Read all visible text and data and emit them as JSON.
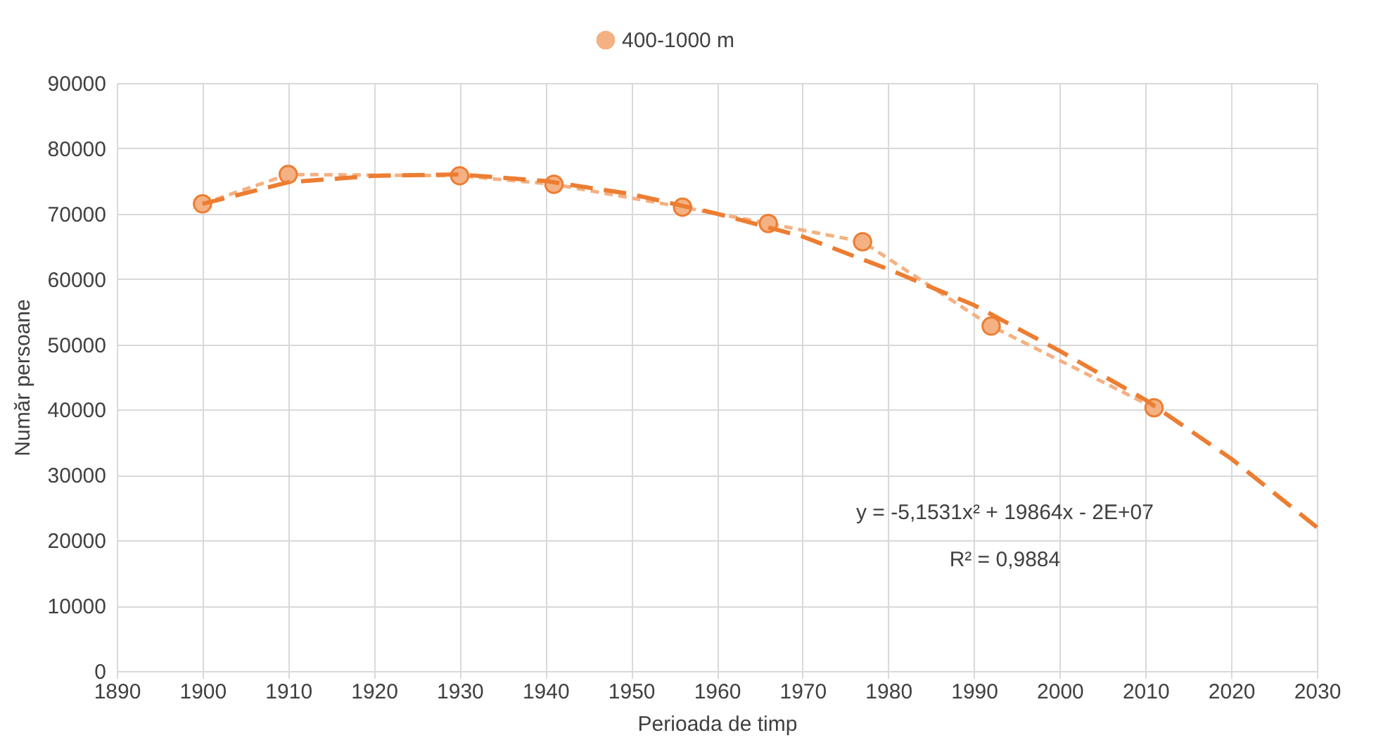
{
  "chart_data": {
    "type": "line",
    "xlabel": "Perioada de timp",
    "ylabel": "Număr persoane",
    "xlim": [
      1890,
      2030
    ],
    "xticks": [
      1890,
      1900,
      1910,
      1920,
      1930,
      1940,
      1950,
      1960,
      1970,
      1980,
      1990,
      2000,
      2010,
      2020,
      2030
    ],
    "ylim": [
      0,
      90000
    ],
    "yticks": [
      0,
      10000,
      20000,
      30000,
      40000,
      50000,
      60000,
      70000,
      80000,
      90000
    ],
    "grid": true,
    "legend": "top",
    "annotations": [
      "y = -5,1531x² + 19864x - 2E+07",
      "R² = 0,9884"
    ],
    "series": [
      {
        "name": "400-1000 m",
        "marker": "circle",
        "line_style": "dashed",
        "color": "#f4b183",
        "x": [
          1900,
          1910,
          1930,
          1941,
          1956,
          1966,
          1977,
          1992,
          2011
        ],
        "values": [
          71500,
          76000,
          75800,
          74500,
          71000,
          68500,
          65700,
          52800,
          40300
        ]
      },
      {
        "marker": "none",
        "line_style": "dashed",
        "color": "#ed7d31",
        "x": [
          1900,
          1910,
          1920,
          1930,
          1940,
          1950,
          1960,
          1970,
          1980,
          1990,
          2000,
          2010,
          2020,
          2030
        ],
        "values": [
          71500,
          74800,
          75800,
          76000,
          75000,
          73000,
          70000,
          66500,
          61500,
          56000,
          49000,
          41500,
          32500,
          22000
        ]
      }
    ]
  }
}
